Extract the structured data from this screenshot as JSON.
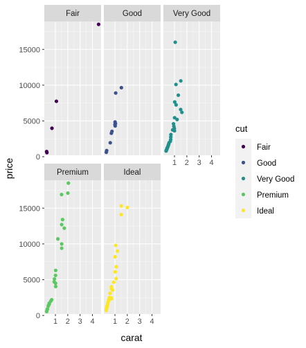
{
  "chart_data": {
    "type": "scatter",
    "title": "",
    "xlabel": "carat",
    "ylabel": "price",
    "xlim": [
      0.1,
      4.7
    ],
    "ylim": [
      200,
      18900
    ],
    "x_ticks": [
      1,
      2,
      3,
      4
    ],
    "y_ticks": [
      0,
      5000,
      10000,
      15000
    ],
    "x_tick_labels": [
      "1",
      "2",
      "3",
      "4"
    ],
    "y_tick_labels": [
      "0",
      "5000",
      "10000",
      "15000"
    ],
    "grid": true,
    "facet_by": "cut",
    "facet_layout": "wrap 3 columns",
    "legend": {
      "title": "cut",
      "placement": "right"
    },
    "series": [
      {
        "name": "Fair",
        "color": "#440154",
        "points": [
          {
            "x": 4.5,
            "y": 18500
          },
          {
            "x": 1.08,
            "y": 7750
          },
          {
            "x": 0.72,
            "y": 3980
          },
          {
            "x": 0.29,
            "y": 720
          },
          {
            "x": 0.31,
            "y": 570
          }
        ]
      },
      {
        "name": "Good",
        "color": "#3b528b",
        "points": [
          {
            "x": 1.52,
            "y": 9650
          },
          {
            "x": 1.06,
            "y": 8900
          },
          {
            "x": 1.01,
            "y": 4850
          },
          {
            "x": 1.04,
            "y": 4620
          },
          {
            "x": 1.0,
            "y": 4500
          },
          {
            "x": 1.02,
            "y": 4300
          },
          {
            "x": 0.76,
            "y": 3550
          },
          {
            "x": 0.71,
            "y": 3280
          },
          {
            "x": 0.62,
            "y": 1950
          },
          {
            "x": 0.33,
            "y": 860
          },
          {
            "x": 0.3,
            "y": 620
          }
        ]
      },
      {
        "name": "Very Good",
        "color": "#21908c",
        "points": [
          {
            "x": 1.06,
            "y": 16000
          },
          {
            "x": 1.51,
            "y": 10600
          },
          {
            "x": 1.12,
            "y": 10100
          },
          {
            "x": 1.31,
            "y": 8600
          },
          {
            "x": 1.02,
            "y": 7650
          },
          {
            "x": 1.13,
            "y": 7250
          },
          {
            "x": 1.5,
            "y": 6600
          },
          {
            "x": 1.6,
            "y": 6200
          },
          {
            "x": 1.01,
            "y": 5450
          },
          {
            "x": 1.21,
            "y": 5200
          },
          {
            "x": 0.92,
            "y": 4600
          },
          {
            "x": 0.95,
            "y": 4250
          },
          {
            "x": 0.99,
            "y": 3950
          },
          {
            "x": 0.85,
            "y": 3750
          },
          {
            "x": 1.0,
            "y": 3620
          },
          {
            "x": 0.71,
            "y": 3100
          },
          {
            "x": 0.7,
            "y": 2750
          },
          {
            "x": 0.69,
            "y": 2400
          },
          {
            "x": 0.66,
            "y": 2150
          },
          {
            "x": 0.56,
            "y": 1950
          },
          {
            "x": 0.54,
            "y": 1800
          },
          {
            "x": 0.52,
            "y": 1700
          },
          {
            "x": 0.5,
            "y": 1600
          },
          {
            "x": 0.47,
            "y": 1450
          },
          {
            "x": 0.45,
            "y": 1350
          },
          {
            "x": 0.42,
            "y": 1250
          },
          {
            "x": 0.4,
            "y": 1200
          },
          {
            "x": 0.39,
            "y": 1100
          },
          {
            "x": 0.37,
            "y": 1000
          },
          {
            "x": 0.35,
            "y": 950
          },
          {
            "x": 0.33,
            "y": 850
          },
          {
            "x": 0.32,
            "y": 800
          }
        ]
      },
      {
        "name": "Premium",
        "color": "#5dc863",
        "points": [
          {
            "x": 2.05,
            "y": 18500
          },
          {
            "x": 2.01,
            "y": 17100
          },
          {
            "x": 1.5,
            "y": 16900
          },
          {
            "x": 1.58,
            "y": 13400
          },
          {
            "x": 1.51,
            "y": 12700
          },
          {
            "x": 1.72,
            "y": 12200
          },
          {
            "x": 1.2,
            "y": 10700
          },
          {
            "x": 1.51,
            "y": 10000
          },
          {
            "x": 1.51,
            "y": 9400
          },
          {
            "x": 1.02,
            "y": 6300
          },
          {
            "x": 1.01,
            "y": 5600
          },
          {
            "x": 0.92,
            "y": 5100
          },
          {
            "x": 0.9,
            "y": 4700
          },
          {
            "x": 1.01,
            "y": 4500
          },
          {
            "x": 1.02,
            "y": 4050
          },
          {
            "x": 0.7,
            "y": 2200
          },
          {
            "x": 0.62,
            "y": 2000
          },
          {
            "x": 0.5,
            "y": 1700
          },
          {
            "x": 0.51,
            "y": 1600
          },
          {
            "x": 0.45,
            "y": 1450
          },
          {
            "x": 0.42,
            "y": 1300
          },
          {
            "x": 0.35,
            "y": 900
          },
          {
            "x": 0.33,
            "y": 800
          },
          {
            "x": 0.3,
            "y": 600
          },
          {
            "x": 0.29,
            "y": 550
          }
        ]
      },
      {
        "name": "Ideal",
        "color": "#fde725",
        "points": [
          {
            "x": 1.51,
            "y": 15300
          },
          {
            "x": 2.01,
            "y": 15100
          },
          {
            "x": 1.51,
            "y": 14100
          },
          {
            "x": 1.06,
            "y": 9800
          },
          {
            "x": 1.2,
            "y": 9000
          },
          {
            "x": 1.01,
            "y": 8200
          },
          {
            "x": 1.11,
            "y": 6800
          },
          {
            "x": 1.02,
            "y": 6100
          },
          {
            "x": 1.1,
            "y": 5150
          },
          {
            "x": 0.9,
            "y": 4650
          },
          {
            "x": 0.71,
            "y": 4000
          },
          {
            "x": 0.72,
            "y": 3750
          },
          {
            "x": 0.8,
            "y": 3550
          },
          {
            "x": 0.6,
            "y": 3100
          },
          {
            "x": 0.55,
            "y": 2500
          },
          {
            "x": 0.7,
            "y": 2450
          },
          {
            "x": 0.72,
            "y": 2350
          },
          {
            "x": 0.5,
            "y": 2250
          },
          {
            "x": 0.46,
            "y": 1950
          },
          {
            "x": 0.42,
            "y": 1700
          },
          {
            "x": 0.41,
            "y": 1550
          },
          {
            "x": 0.38,
            "y": 1400
          },
          {
            "x": 0.36,
            "y": 1300
          },
          {
            "x": 0.35,
            "y": 1200
          },
          {
            "x": 0.33,
            "y": 1050
          },
          {
            "x": 0.32,
            "y": 980
          },
          {
            "x": 0.31,
            "y": 900
          },
          {
            "x": 0.3,
            "y": 850
          },
          {
            "x": 0.3,
            "y": 800
          },
          {
            "x": 0.29,
            "y": 700
          }
        ]
      }
    ]
  }
}
